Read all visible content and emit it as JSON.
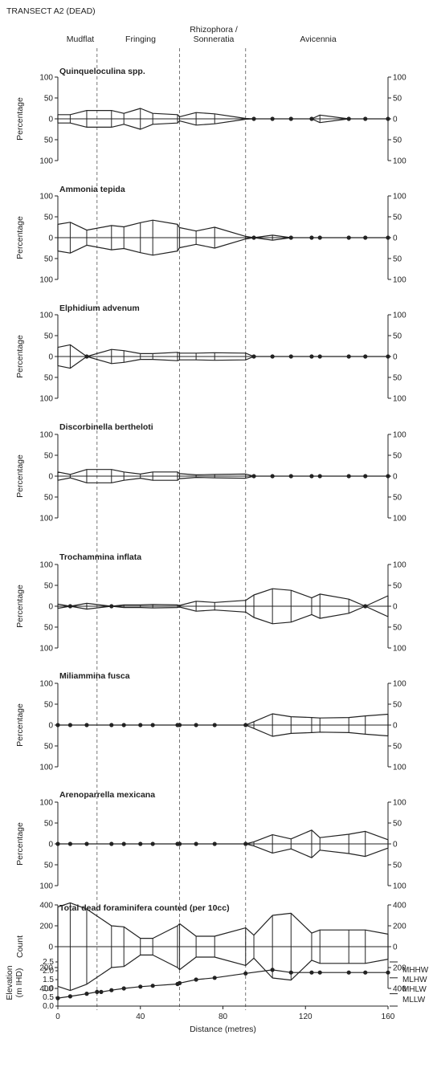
{
  "title": "TRANSECT A2 (DEAD)",
  "zones": [
    "Mudflat",
    "Fringing",
    "Rhizophora /",
    "Sonneratia",
    "Avicennia"
  ],
  "zone_boundaries_m": [
    19,
    59,
    91
  ],
  "chart_data": [
    {
      "type": "kite",
      "title": "Quinqueloculina spp.",
      "ylabel": "Percentage",
      "yticks": [
        "100",
        "50",
        "0",
        "50",
        "100"
      ],
      "ylim": [
        0,
        100
      ],
      "x": [
        0,
        6,
        14,
        26,
        32,
        40,
        46,
        58,
        59,
        67,
        76,
        91,
        95,
        104,
        113,
        123,
        127,
        141,
        149,
        160
      ],
      "values": [
        10,
        10,
        20,
        20,
        13,
        25,
        13,
        10,
        5,
        15,
        12,
        1,
        0,
        0,
        0,
        0,
        9,
        0,
        0,
        0
      ]
    },
    {
      "type": "kite",
      "title": "Ammonia tepida",
      "ylabel": "Percentage",
      "yticks": [
        "100",
        "50",
        "0",
        "50",
        "100"
      ],
      "ylim": [
        0,
        100
      ],
      "x": [
        0,
        6,
        14,
        26,
        32,
        40,
        46,
        58,
        59,
        67,
        76,
        91,
        95,
        104,
        113,
        123,
        127,
        141,
        149,
        160
      ],
      "values": [
        32,
        37,
        18,
        29,
        26,
        36,
        42,
        32,
        24,
        16,
        25,
        3,
        0,
        6,
        0,
        0,
        0,
        0,
        0,
        0
      ]
    },
    {
      "type": "kite",
      "title": "Elphidium advenum",
      "ylabel": "Percentage",
      "yticks": [
        "100",
        "50",
        "0",
        "50",
        "100"
      ],
      "ylim": [
        0,
        100
      ],
      "x": [
        0,
        6,
        14,
        26,
        32,
        40,
        46,
        58,
        59,
        67,
        76,
        91,
        95,
        104,
        113,
        123,
        127,
        141,
        149,
        160
      ],
      "values": [
        22,
        28,
        0,
        17,
        14,
        7,
        7,
        10,
        8,
        8,
        9,
        8,
        0,
        0,
        0,
        0,
        0,
        0,
        0,
        0
      ]
    },
    {
      "type": "kite",
      "title": "Discorbinella bertheloti",
      "ylabel": "Percentage",
      "yticks": [
        "100",
        "50",
        "0",
        "50",
        "100"
      ],
      "ylim": [
        0,
        100
      ],
      "x": [
        0,
        6,
        14,
        26,
        32,
        40,
        46,
        58,
        59,
        67,
        76,
        91,
        95,
        104,
        113,
        123,
        127,
        141,
        149,
        160
      ],
      "values": [
        10,
        4,
        16,
        16,
        10,
        5,
        10,
        10,
        6,
        3,
        4,
        5,
        0,
        0,
        0,
        0,
        0,
        0,
        0,
        0
      ]
    },
    {
      "type": "kite",
      "title": "Trochammina inflata",
      "ylabel": "Percentage",
      "yticks": [
        "100",
        "50",
        "0",
        "50",
        "100"
      ],
      "ylim": [
        0,
        100
      ],
      "x": [
        0,
        6,
        14,
        26,
        32,
        40,
        46,
        58,
        59,
        67,
        76,
        91,
        95,
        104,
        113,
        123,
        127,
        141,
        149,
        160
      ],
      "values": [
        5,
        0,
        7,
        0,
        3,
        3,
        4,
        3,
        2,
        12,
        9,
        14,
        27,
        42,
        38,
        20,
        29,
        17,
        0,
        25
      ]
    },
    {
      "type": "kite",
      "title": "Miliammina fusca",
      "ylabel": "Percentage",
      "yticks": [
        "100",
        "50",
        "0",
        "50",
        "100"
      ],
      "ylim": [
        0,
        100
      ],
      "x": [
        0,
        6,
        14,
        26,
        32,
        40,
        46,
        58,
        59,
        67,
        76,
        91,
        95,
        104,
        113,
        123,
        127,
        141,
        149,
        160
      ],
      "values": [
        0,
        0,
        0,
        0,
        0,
        0,
        0,
        0,
        0,
        0,
        0,
        0,
        8,
        27,
        20,
        18,
        17,
        18,
        22,
        26
      ]
    },
    {
      "type": "kite",
      "title": "Arenoparrella mexicana",
      "ylabel": "Percentage",
      "yticks": [
        "100",
        "50",
        "0",
        "50",
        "100"
      ],
      "ylim": [
        0,
        100
      ],
      "x": [
        0,
        6,
        14,
        26,
        32,
        40,
        46,
        58,
        59,
        67,
        76,
        91,
        95,
        104,
        113,
        123,
        127,
        141,
        149,
        160
      ],
      "values": [
        0,
        0,
        0,
        0,
        0,
        0,
        0,
        0,
        0,
        0,
        0,
        0,
        5,
        22,
        12,
        33,
        15,
        23,
        30,
        10
      ]
    },
    {
      "type": "kite",
      "title": "Total dead foraminifera counted (per 10cc)",
      "ylabel": "Count",
      "yticks": [
        "400",
        "200",
        "0",
        "200",
        "400"
      ],
      "ylim": [
        0,
        400
      ],
      "x": [
        0,
        6,
        14,
        26,
        32,
        40,
        46,
        58,
        59,
        67,
        76,
        91,
        95,
        104,
        113,
        123,
        127,
        141,
        149,
        160
      ],
      "values": [
        380,
        420,
        360,
        200,
        190,
        80,
        80,
        200,
        220,
        100,
        100,
        180,
        110,
        300,
        320,
        130,
        160,
        160,
        160,
        120
      ]
    },
    {
      "type": "line",
      "ylabel_lines": [
        "Elevation",
        "(m IHD)"
      ],
      "yticks": [
        "2.5",
        "2.0",
        "1.5",
        "1.0",
        "0.5",
        "0.0"
      ],
      "ylim": [
        0,
        2.5
      ],
      "xlabel": "Distance (metres)",
      "xticks": [
        "0",
        "40",
        "80",
        "120",
        "160"
      ],
      "xlim": [
        0,
        160
      ],
      "x": [
        0,
        6,
        14,
        19,
        21,
        26,
        32,
        40,
        46,
        58,
        59,
        67,
        76,
        91,
        104,
        113,
        123,
        127,
        141,
        149,
        160
      ],
      "values": [
        0.45,
        0.55,
        0.7,
        0.8,
        0.8,
        0.9,
        1.0,
        1.1,
        1.15,
        1.25,
        1.3,
        1.5,
        1.6,
        1.85,
        2.05,
        1.9,
        1.9,
        1.9,
        1.9,
        1.9,
        1.9
      ],
      "tide_levels": [
        {
          "name": "MHHW",
          "value": 2.5
        },
        {
          "name": "MLHW",
          "value": 1.6
        },
        {
          "name": "MHLW",
          "value": 0.7
        },
        {
          "name": "MLLW",
          "value": 0.0
        }
      ]
    }
  ]
}
